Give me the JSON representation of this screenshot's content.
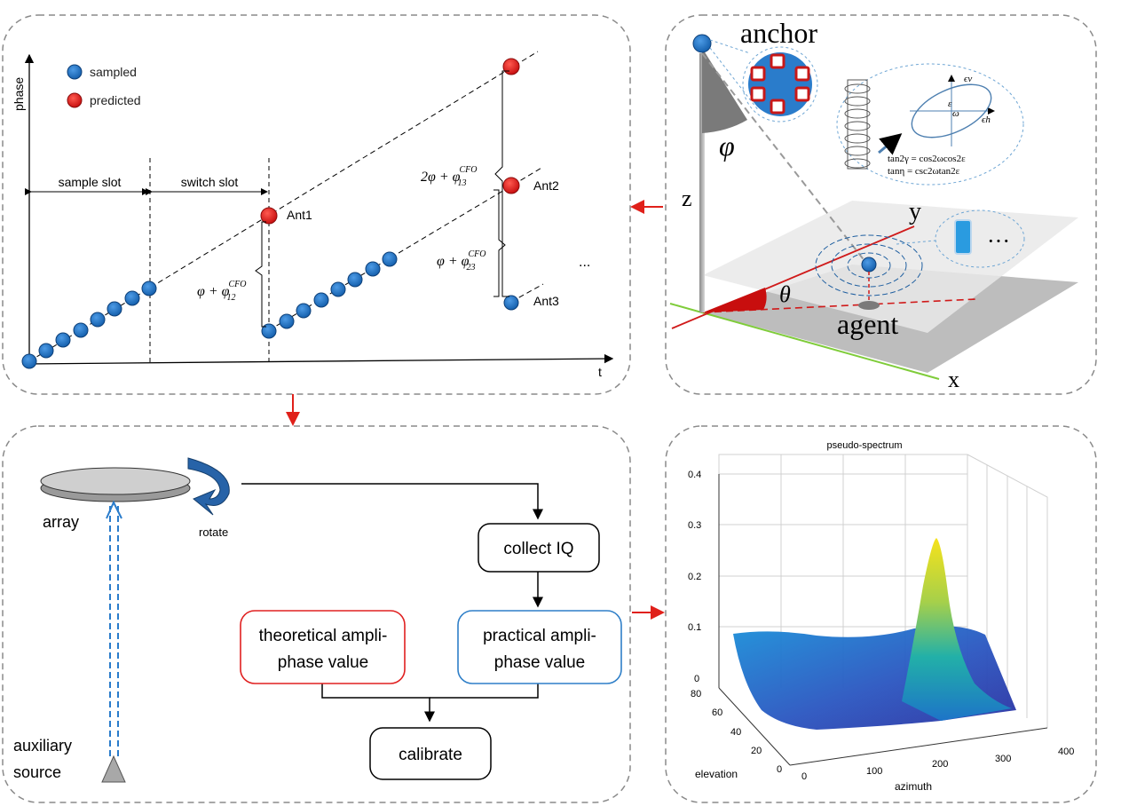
{
  "panel_phase": {
    "y_axis": "phase",
    "x_axis": "t",
    "legend": {
      "sampled": "sampled",
      "predicted": "predicted"
    },
    "sample_slot": "sample slot",
    "switch_slot": "switch slot",
    "ant1": "Ant1",
    "ant2": "Ant2",
    "ant3": "Ant3",
    "ellipsis": "...",
    "offset_12": "φ + φ",
    "offset_12_sup": "CFO",
    "offset_12_sub": "12",
    "offset_13": "2φ + φ",
    "offset_13_sup": "CFO",
    "offset_13_sub": "13",
    "offset_23": "φ + φ",
    "offset_23_sup": "CFO",
    "offset_23_sub": "23"
  },
  "panel_geometry": {
    "anchor": "anchor",
    "agent": "agent",
    "phi": "φ",
    "theta": "θ",
    "axis_x": "x",
    "axis_y": "y",
    "axis_z": "z",
    "eq1": "tan2γ = cos2ωcos2ε",
    "eq2": "tanη = csc2ωtan2ε",
    "eps": "ε",
    "omega": "ω",
    "ev": "ϵv",
    "eh": "ϵh",
    "ellipsis": "···"
  },
  "panel_calibration": {
    "array": "array",
    "rotate": "rotate",
    "collect": "collect IQ",
    "theoretical_1": "theoretical ampli-",
    "theoretical_2": "phase value",
    "practical_1": "practical ampli-",
    "practical_2": "phase value",
    "calibrate": "calibrate",
    "aux_1": "auxiliary",
    "aux_2": "source"
  },
  "panel_spectrum": {
    "title": "pseudo-spectrum",
    "z_ticks": [
      "0",
      "0.1",
      "0.2",
      "0.3",
      "0.4"
    ],
    "elev_ticks": [
      "0",
      "20",
      "40",
      "60",
      "80"
    ],
    "azim_ticks": [
      "0",
      "100",
      "200",
      "300",
      "400"
    ],
    "elev_label": "elevation",
    "azim_label": "azimuth"
  },
  "colors": {
    "sampled": "#1f6fc0",
    "predicted": "#e0201a",
    "arrow": "#e0201a",
    "theoretical_border": "#e02020",
    "practical_border": "#2f7fc8"
  },
  "chart_data": {
    "type": "surface",
    "title": "pseudo-spectrum",
    "xlabel": "azimuth",
    "ylabel": "elevation",
    "xlim": [
      0,
      400
    ],
    "ylim": [
      0,
      80
    ],
    "zlim": [
      0,
      0.4
    ],
    "peak": {
      "azimuth": 200,
      "elevation": 30,
      "value": 0.37
    },
    "baseline": 0.1
  }
}
